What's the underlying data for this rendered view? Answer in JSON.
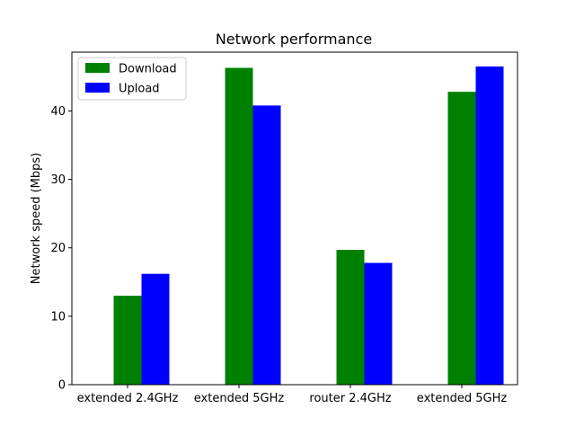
{
  "chart_data": {
    "type": "bar",
    "title": "Network performance",
    "xlabel": "",
    "ylabel": "Network speed (Mbps)",
    "categories": [
      "extended 2.4GHz",
      "extended 5GHz",
      "router 2.4GHz",
      "extended 5GHz"
    ],
    "series": [
      {
        "name": "Download",
        "color": "#008000",
        "values": [
          13.0,
          46.3,
          19.7,
          42.8
        ]
      },
      {
        "name": "Upload",
        "color": "#0000ff",
        "values": [
          16.2,
          40.8,
          17.8,
          46.5
        ]
      }
    ],
    "ylim": [
      0,
      48.6
    ],
    "yticks": [
      0,
      10,
      20,
      30,
      40
    ],
    "grid": false,
    "legend_position": "top-left"
  }
}
